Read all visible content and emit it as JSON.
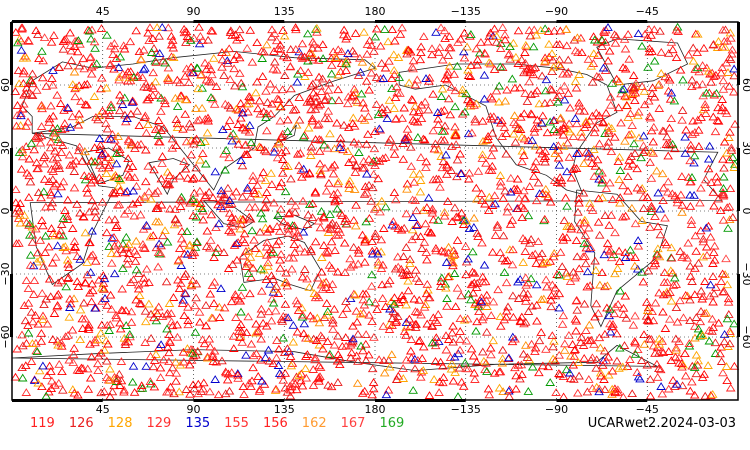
{
  "map": {
    "projection": "equirectangular",
    "center_longitude": 180,
    "lon_labels": [
      "45",
      "90",
      "135",
      "180",
      "−135",
      "−90",
      "−45"
    ],
    "lat_labels_left": [
      "60",
      "30",
      "0",
      "−30",
      "−60"
    ],
    "lat_labels_right": [
      "60",
      "30",
      "0",
      "−30",
      "−60"
    ],
    "grid": "dotted every 45° longitude and 30° latitude",
    "marker": "hollow triangle",
    "marker_colors": [
      "#ff0000",
      "#e81818",
      "#ffa500",
      "#ff3030",
      "#0000cc",
      "#ff2222",
      "#ff1a1a",
      "#ff8c00",
      "#ff4040",
      "#009900"
    ],
    "station_seed": 20240303,
    "station_count": 3400
  },
  "legend": [
    {
      "label": "119",
      "color": "#ff2020"
    },
    {
      "label": "126",
      "color": "#e82020"
    },
    {
      "label": "128",
      "color": "#ffa500"
    },
    {
      "label": "129",
      "color": "#ff3030"
    },
    {
      "label": "135",
      "color": "#0000cc"
    },
    {
      "label": "155",
      "color": "#ff3030"
    },
    {
      "label": "156",
      "color": "#ff2020"
    },
    {
      "label": "162",
      "color": "#ff9a30"
    },
    {
      "label": "167",
      "color": "#ff4040"
    },
    {
      "label": "169",
      "color": "#22aa22"
    }
  ],
  "caption": "UCARwet2.2024-03-03"
}
